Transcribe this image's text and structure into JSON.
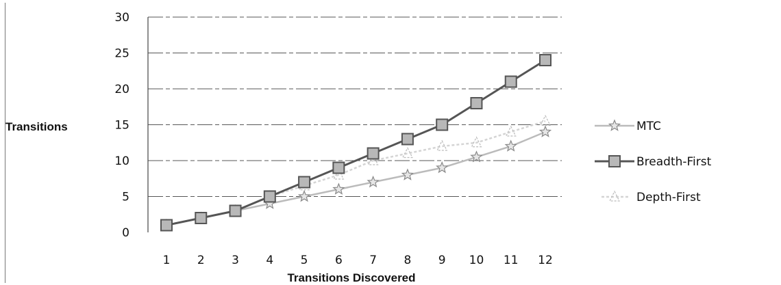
{
  "chart_data": {
    "type": "line",
    "xlabel": "Transitions Discovered",
    "ylabel": "Transitions",
    "categories": [
      "1",
      "2",
      "3",
      "4",
      "5",
      "6",
      "7",
      "8",
      "9",
      "10",
      "11",
      "12"
    ],
    "ylim": [
      0,
      30
    ],
    "yticks": [
      "0",
      "5",
      "10",
      "15",
      "20",
      "25",
      "30"
    ],
    "grid": "horizontal dashed",
    "legend_position": "right",
    "series": [
      {
        "name": "MTC",
        "values": [
          1,
          2,
          3,
          4,
          5,
          6,
          7,
          8,
          9,
          10.5,
          12,
          14
        ],
        "marker": "star",
        "color": "#bbbbbb"
      },
      {
        "name": "Breadth-First",
        "values": [
          1,
          2,
          3,
          5,
          7,
          9,
          11,
          13,
          15,
          18,
          21,
          24
        ],
        "marker": "square",
        "color": "#555555"
      },
      {
        "name": "Depth-First",
        "values": [
          1,
          2,
          3,
          5,
          6.5,
          8,
          10,
          11,
          12,
          12.5,
          14,
          15.5
        ],
        "marker": "triangle",
        "color": "#d4d4d4"
      }
    ]
  }
}
